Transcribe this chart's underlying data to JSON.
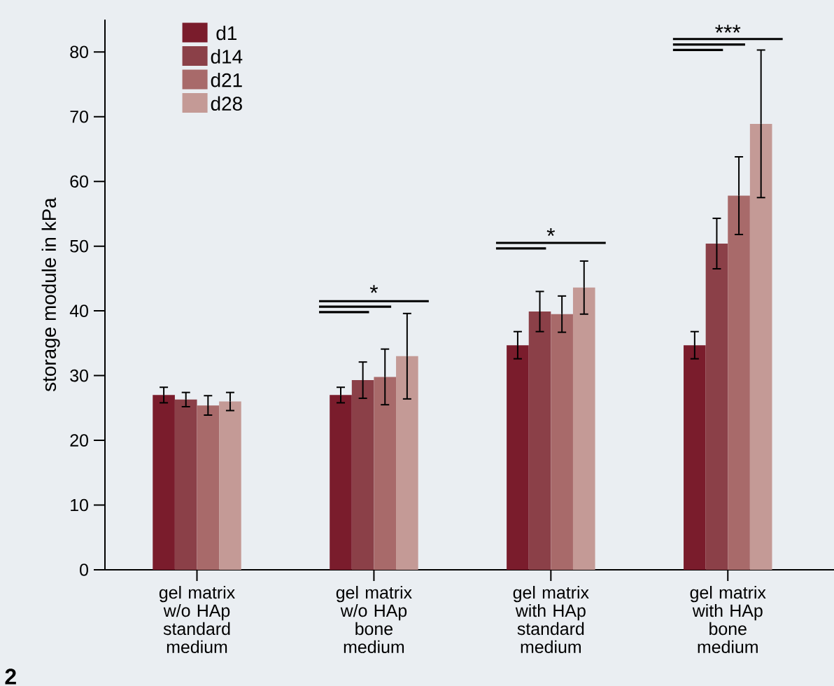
{
  "chart_data": {
    "type": "bar",
    "ylabel": "storage module in kPa",
    "categories": [
      "gel matrix w/o HAp standard medium",
      "gel matrix w/o HAp bone medium",
      "gel matrix with HAp standard medium",
      "gel matrix with HAp bone medium"
    ],
    "series": [
      {
        "name": "d1",
        "color": "#7a1c2c",
        "values": [
          27.0,
          27.0,
          34.7,
          34.7
        ],
        "errors": [
          1.2,
          1.2,
          2.1,
          2.1
        ]
      },
      {
        "name": "d14",
        "color": "#8b4048",
        "values": [
          26.3,
          29.3,
          39.9,
          50.4
        ],
        "errors": [
          1.1,
          2.8,
          3.1,
          3.9
        ]
      },
      {
        "name": "d21",
        "color": "#a86a6a",
        "values": [
          25.4,
          29.8,
          39.5,
          57.8
        ],
        "errors": [
          1.5,
          4.3,
          2.8,
          6.0
        ]
      },
      {
        "name": "d28",
        "color": "#c49a96",
        "values": [
          26.0,
          33.0,
          43.6,
          68.9
        ],
        "errors": [
          1.4,
          6.6,
          4.1,
          11.4
        ]
      }
    ],
    "ylim": [
      0,
      85
    ],
    "yticks": [
      0,
      10,
      20,
      30,
      40,
      50,
      60,
      70,
      80
    ],
    "grid": false,
    "legend": "top left",
    "annotations": [
      "*",
      "*",
      "***",
      "2"
    ]
  }
}
